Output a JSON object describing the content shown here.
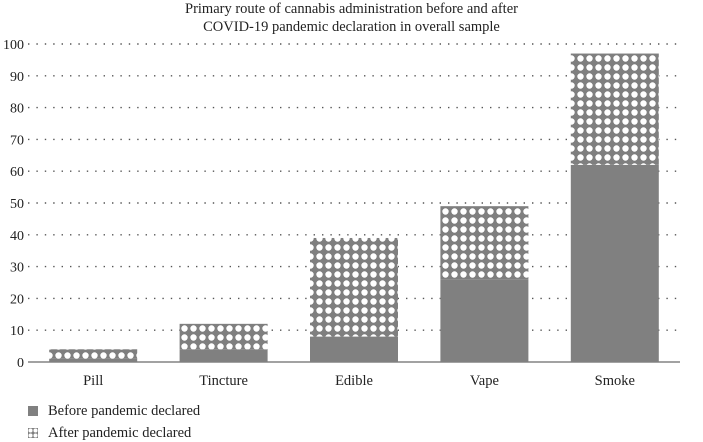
{
  "chart_data": {
    "type": "bar",
    "stacked": true,
    "title_lines": [
      "Primary route of cannabis administration before and after",
      "COVID-19 pandemic declaration in overall sample"
    ],
    "xlabel": "",
    "ylabel": "",
    "categories": [
      "Pill",
      "Tincture",
      "Edible",
      "Vape",
      "Smoke"
    ],
    "series": [
      {
        "name": "Before pandemic declared",
        "values": [
          1,
          4,
          8,
          26,
          62
        ],
        "color": "#808080",
        "pattern": "solid"
      },
      {
        "name": "After pandemic declared",
        "values": [
          3,
          8,
          31,
          23,
          35
        ],
        "color": "#808080",
        "pattern": "dotted-check"
      }
    ],
    "ylim": [
      0,
      100
    ],
    "yticks": [
      "0",
      "10",
      "20",
      "30",
      "40",
      "50",
      "60",
      "70",
      "80",
      "90",
      "100"
    ],
    "grid": "horizontal-dotted",
    "legend_position": "bottom-left"
  }
}
